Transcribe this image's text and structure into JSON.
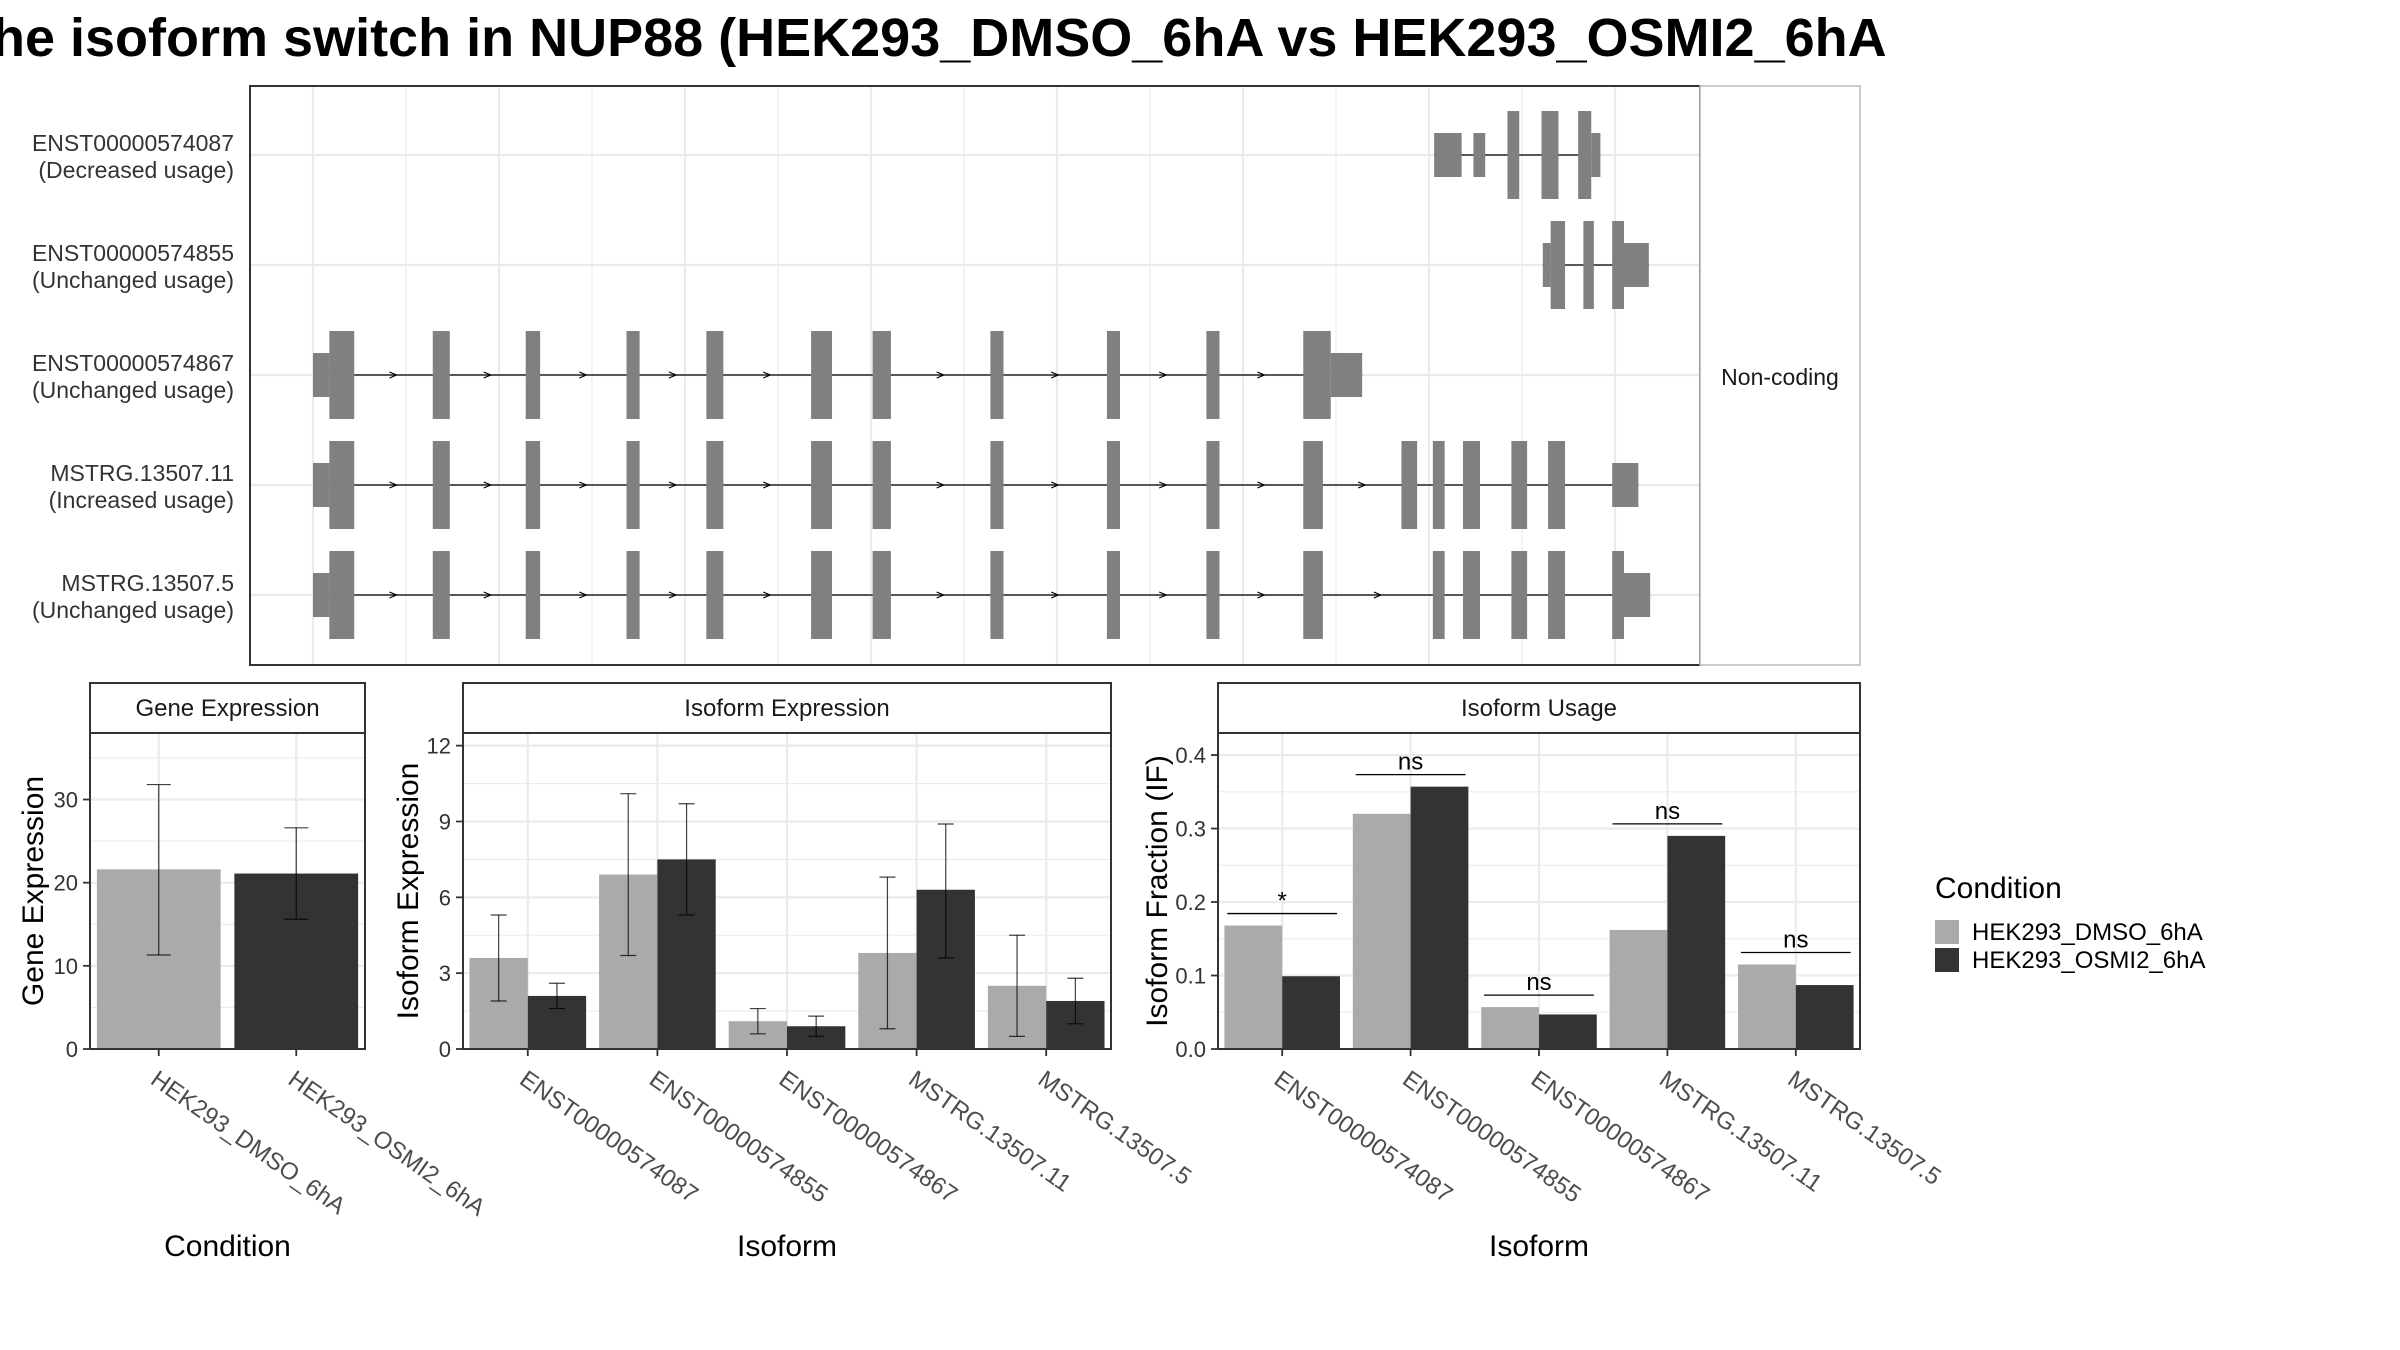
{
  "title": "he isoform switch in NUP88 (HEK293_DMSO_6hA vs HEK293_OSMI2_6hA",
  "colors": {
    "dmso": "#aaaaaa",
    "osmi": "#333333",
    "exon": "#808080",
    "frame": "#333333",
    "grid": "#ebebeb",
    "strip_bg": "#ffffff"
  },
  "structure": {
    "category_label": "Non-coding",
    "transcripts": [
      {
        "id": "ENST00000574087",
        "usage": "(Decreased usage)",
        "strand": "+",
        "exons": [
          [
            0.8565,
            0.8775,
            "t"
          ],
          [
            0.8865,
            0.8955,
            "t"
          ],
          [
            0.9125,
            0.9215,
            "c"
          ],
          [
            0.9385,
            0.9515,
            "c"
          ],
          [
            0.9665,
            0.9765,
            "c"
          ],
          [
            0.9765,
            0.9835,
            "t"
          ]
        ]
      },
      {
        "id": "ENST00000574855",
        "usage": "(Unchanged usage)",
        "strand": "+",
        "exons": [
          [
            0.9395,
            0.9455,
            "t"
          ],
          [
            0.9455,
            0.9565,
            "c"
          ],
          [
            0.9705,
            0.9785,
            "c"
          ],
          [
            0.9925,
            1.0015,
            "c"
          ],
          [
            1.0015,
            1.0205,
            "t"
          ]
        ]
      },
      {
        "id": "ENST00000574867",
        "usage": "(Unchanged usage)",
        "strand": "+",
        "exons": [
          [
            0.0,
            0.0125,
            "t"
          ],
          [
            0.0125,
            0.0315,
            "c"
          ],
          [
            0.0915,
            0.1045,
            "c"
          ],
          [
            0.1625,
            0.1735,
            "c"
          ],
          [
            0.2395,
            0.2495,
            "c"
          ],
          [
            0.3005,
            0.3135,
            "c"
          ],
          [
            0.3805,
            0.3965,
            "c"
          ],
          [
            0.4275,
            0.4415,
            "c"
          ],
          [
            0.5175,
            0.5275,
            "c"
          ],
          [
            0.6065,
            0.6165,
            "c"
          ],
          [
            0.6825,
            0.6925,
            "c"
          ],
          [
            0.7565,
            0.7775,
            "c"
          ],
          [
            0.7775,
            0.8015,
            "t"
          ]
        ]
      },
      {
        "id": "MSTRG.13507.11",
        "usage": "(Increased usage)",
        "strand": "+",
        "exons": [
          [
            0.0,
            0.0125,
            "t"
          ],
          [
            0.0125,
            0.0315,
            "c"
          ],
          [
            0.0915,
            0.1045,
            "c"
          ],
          [
            0.1625,
            0.1735,
            "c"
          ],
          [
            0.2395,
            0.2495,
            "c"
          ],
          [
            0.3005,
            0.3135,
            "c"
          ],
          [
            0.3805,
            0.3965,
            "c"
          ],
          [
            0.4275,
            0.4415,
            "c"
          ],
          [
            0.5175,
            0.5275,
            "c"
          ],
          [
            0.6065,
            0.6165,
            "c"
          ],
          [
            0.6825,
            0.6925,
            "c"
          ],
          [
            0.7565,
            0.7715,
            "c"
          ],
          [
            0.8315,
            0.8435,
            "c"
          ],
          [
            0.8555,
            0.8645,
            "c"
          ],
          [
            0.8785,
            0.8915,
            "c"
          ],
          [
            0.9155,
            0.9275,
            "c"
          ],
          [
            0.9435,
            0.9565,
            "c"
          ],
          [
            0.9925,
            1.0125,
            "t"
          ]
        ]
      },
      {
        "id": "MSTRG.13507.5",
        "usage": "(Unchanged usage)",
        "strand": "+",
        "exons": [
          [
            0.0,
            0.0125,
            "t"
          ],
          [
            0.0125,
            0.0315,
            "c"
          ],
          [
            0.0915,
            0.1045,
            "c"
          ],
          [
            0.1625,
            0.1735,
            "c"
          ],
          [
            0.2395,
            0.2495,
            "c"
          ],
          [
            0.3005,
            0.3135,
            "c"
          ],
          [
            0.3805,
            0.3965,
            "c"
          ],
          [
            0.4275,
            0.4415,
            "c"
          ],
          [
            0.5175,
            0.5275,
            "c"
          ],
          [
            0.6065,
            0.6165,
            "c"
          ],
          [
            0.6825,
            0.6925,
            "c"
          ],
          [
            0.7565,
            0.7715,
            "c"
          ],
          [
            0.8555,
            0.8645,
            "c"
          ],
          [
            0.8785,
            0.8915,
            "c"
          ],
          [
            0.9155,
            0.9275,
            "c"
          ],
          [
            0.9435,
            0.9565,
            "c"
          ],
          [
            0.9925,
            1.0015,
            "c"
          ],
          [
            1.0015,
            1.0215,
            "t"
          ]
        ]
      }
    ]
  },
  "legend": {
    "title": "Condition",
    "items": [
      {
        "label": "HEK293_DMSO_6hA",
        "color_key": "dmso"
      },
      {
        "label": "HEK293_OSMI2_6hA",
        "color_key": "osmi"
      }
    ]
  },
  "chart_data": [
    {
      "type": "bar",
      "title": "Gene Expression",
      "xlabel": "Condition",
      "ylabel": "Gene Expression",
      "ylim": [
        0,
        38
      ],
      "yticks": [
        0,
        10,
        20,
        30
      ],
      "categories": [
        "HEK293_DMSO_6hA",
        "HEK293_OSMI2_6hA"
      ],
      "values": [
        21.6,
        21.1
      ],
      "error": [
        [
          11.3,
          31.8
        ],
        [
          15.6,
          26.6
        ]
      ],
      "grid": true
    },
    {
      "type": "bar",
      "title": "Isoform Expression",
      "xlabel": "Isoform",
      "ylabel": "Isoform Expression",
      "ylim": [
        0,
        12.5
      ],
      "yticks": [
        0,
        3,
        6,
        9,
        12
      ],
      "categories": [
        "ENST00000574087",
        "ENST00000574855",
        "ENST00000574867",
        "MSTRG.13507.11",
        "MSTRG.13507.5"
      ],
      "series": [
        {
          "name": "HEK293_DMSO_6hA",
          "values": [
            3.6,
            6.9,
            1.1,
            3.8,
            2.5
          ],
          "error": [
            [
              1.9,
              5.3
            ],
            [
              3.7,
              10.1
            ],
            [
              0.6,
              1.6
            ],
            [
              0.8,
              6.8
            ],
            [
              0.5,
              4.5
            ]
          ]
        },
        {
          "name": "HEK293_OSMI2_6hA",
          "values": [
            2.1,
            7.5,
            0.9,
            6.3,
            1.9
          ],
          "error": [
            [
              1.6,
              2.6
            ],
            [
              5.3,
              9.7
            ],
            [
              0.5,
              1.3
            ],
            [
              3.6,
              8.9
            ],
            [
              1.0,
              2.8
            ]
          ]
        }
      ],
      "grid": true
    },
    {
      "type": "bar",
      "title": "Isoform Usage",
      "xlabel": "Isoform",
      "ylabel": "Isoform Fraction (IF)",
      "ylim": [
        0,
        0.43
      ],
      "yticks": [
        0.0,
        0.1,
        0.2,
        0.3,
        0.4
      ],
      "categories": [
        "ENST00000574087",
        "ENST00000574855",
        "ENST00000574867",
        "MSTRG.13507.11",
        "MSTRG.13507.5"
      ],
      "series": [
        {
          "name": "HEK293_DMSO_6hA",
          "values": [
            0.168,
            0.32,
            0.057,
            0.162,
            0.115
          ]
        },
        {
          "name": "HEK293_OSMI2_6hA",
          "values": [
            0.099,
            0.357,
            0.047,
            0.29,
            0.087
          ]
        }
      ],
      "significance": [
        "*",
        "ns",
        "ns",
        "ns",
        "ns"
      ],
      "grid": true
    }
  ]
}
